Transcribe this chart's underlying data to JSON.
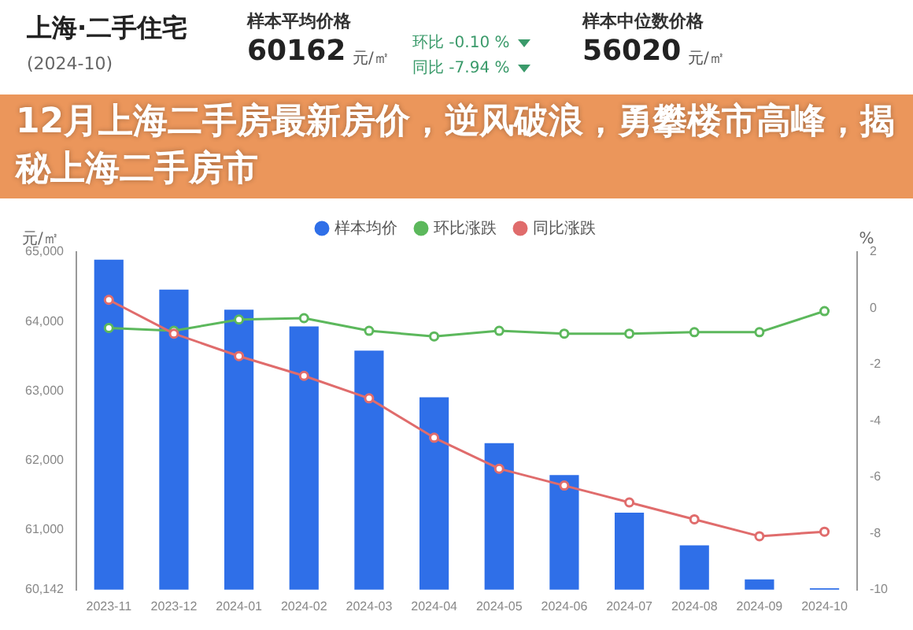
{
  "chart_data": {
    "type": "bar",
    "title": "12月上海二手房最新房价，逆风破浪，勇攀楼市高峰，揭秘上海二手房市",
    "ylabel": "元/㎡",
    "y2label": "%",
    "annotations": [
      "上海·二手住宅",
      "(2024-10)",
      "样本平均价格",
      "60162",
      "元/㎡",
      "环比 -0.10 %",
      "同比 -7.94 %",
      "样本中位数价格",
      "56020",
      "元/㎡"
    ],
    "categories": [
      "2023-11",
      "2023-12",
      "2024-01",
      "2024-02",
      "2024-03",
      "2024-04",
      "2024-05",
      "2024-06",
      "2024-07",
      "2024-08",
      "2024-09",
      "2024-10"
    ],
    "series": [
      {
        "name": "样本均价",
        "color": "#2f6fe8",
        "values": [
          64890,
          64460,
          64170,
          63930,
          63580,
          62910,
          62250,
          61790,
          61250,
          60780,
          60290,
          60162
        ]
      },
      {
        "name": "环比涨跌",
        "type": "line",
        "axis": "y2",
        "color": "#5cb85c",
        "values": [
          -0.7,
          -0.8,
          -0.4,
          -0.35,
          -0.8,
          -1.0,
          -0.8,
          -0.9,
          -0.9,
          -0.85,
          -0.85,
          -0.1
        ]
      },
      {
        "name": "同比涨跌",
        "type": "line",
        "axis": "y2",
        "color": "#e06c6c",
        "values": [
          0.3,
          -0.9,
          -1.7,
          -2.4,
          -3.2,
          -4.6,
          -5.7,
          -6.3,
          -6.9,
          -7.5,
          -8.1,
          -7.94
        ]
      }
    ],
    "ylim": [
      60142,
      65000
    ],
    "yticks": [
      {
        "value": 60142,
        "label": "60,142"
      },
      {
        "value": 61000,
        "label": "61,000"
      },
      {
        "value": 62000,
        "label": "62,000"
      },
      {
        "value": 63000,
        "label": "63,000"
      },
      {
        "value": 64000,
        "label": "64,000"
      },
      {
        "value": 65000,
        "label": "65,000"
      }
    ],
    "y2lim": [
      -10,
      2
    ],
    "y2ticks": [
      -10,
      -8,
      -6,
      -4,
      -2,
      0,
      2
    ],
    "grid": false,
    "legend": "top",
    "marker": "circle",
    "line_style": "solid"
  }
}
